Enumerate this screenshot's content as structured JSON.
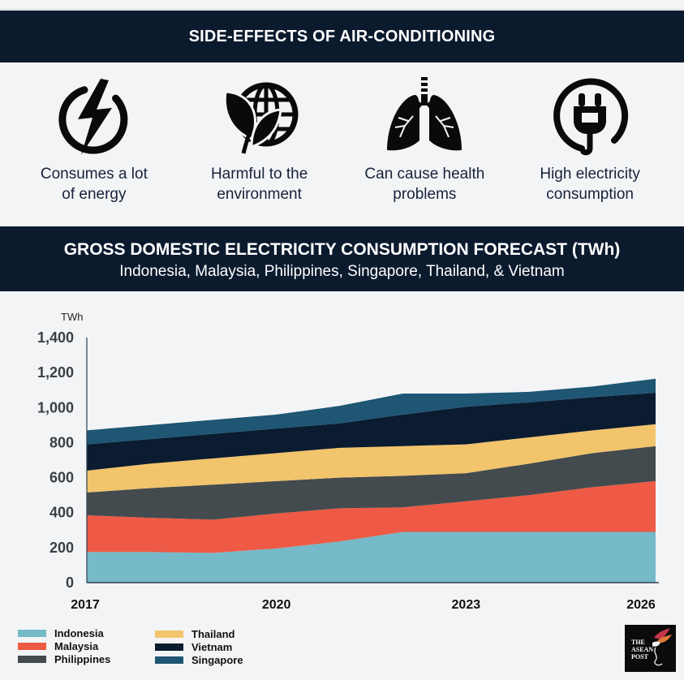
{
  "header": {
    "title": "SIDE-EFFECTS OF AIR-CONDITIONING"
  },
  "effects": [
    {
      "icon": "lightning-circle-icon",
      "label_line1": "Consumes a lot",
      "label_line2": "of energy"
    },
    {
      "icon": "leaf-globe-icon",
      "label_line1": "Harmful to the",
      "label_line2": "environment"
    },
    {
      "icon": "lungs-icon",
      "label_line1": "Can cause health",
      "label_line2": "problems"
    },
    {
      "icon": "plug-circle-icon",
      "label_line1": "High electricity",
      "label_line2": "consumption"
    }
  ],
  "section": {
    "title": "GROSS DOMESTIC ELECTRICITY CONSUMPTION FORECAST (TWh)",
    "subtitle": "Indonesia, Malaysia, Philippines, Singapore, Thailand, & Vietnam"
  },
  "chart_data": {
    "type": "area",
    "stacked": true,
    "title": "GROSS DOMESTIC ELECTRICITY CONSUMPTION FORECAST (TWh)",
    "subtitle": "Indonesia, Malaysia, Philippines, Singapore, Thailand, & Vietnam",
    "ylabel": "TWh",
    "xlabel": "",
    "x": [
      2017,
      2018,
      2019,
      2020,
      2021,
      2022,
      2023,
      2024,
      2025,
      2026
    ],
    "x_ticks": [
      "2017",
      "2020",
      "2023",
      "2026"
    ],
    "y_ticks": [
      "0",
      "200",
      "400",
      "600",
      "800",
      "1,000",
      "1,200",
      "1,400"
    ],
    "ylim": [
      0,
      1400
    ],
    "grid": false,
    "legend_position": "bottom-left",
    "series": [
      {
        "name": "Indonesia",
        "color": "#76b9c8",
        "values": [
          175,
          175,
          170,
          195,
          235,
          290,
          290,
          290,
          290,
          290
        ]
      },
      {
        "name": "Malaysia",
        "color": "#ee5a45",
        "values": [
          210,
          195,
          190,
          200,
          190,
          140,
          175,
          210,
          255,
          290
        ]
      },
      {
        "name": "Philippines",
        "color": "#444b4e",
        "values": [
          130,
          170,
          200,
          185,
          175,
          180,
          160,
          180,
          195,
          200
        ]
      },
      {
        "name": "Thailand",
        "color": "#f2c46b",
        "values": [
          125,
          140,
          150,
          160,
          170,
          170,
          165,
          150,
          130,
          125
        ]
      },
      {
        "name": "Vietnam",
        "color": "#0b1b30",
        "values": [
          150,
          140,
          140,
          140,
          140,
          180,
          215,
          200,
          190,
          180
        ]
      },
      {
        "name": "Singapore",
        "color": "#1e5674",
        "values": [
          80,
          80,
          80,
          80,
          100,
          120,
          75,
          60,
          60,
          80
        ]
      }
    ]
  },
  "legend": {
    "col1": [
      "Indonesia",
      "Malaysia",
      "Philippines"
    ],
    "col2": [
      "Thailand",
      "Vietnam",
      "Singapore"
    ]
  },
  "logo": {
    "text_line1": "THE",
    "text_line2": "ASEAN",
    "text_line3": "POST"
  }
}
